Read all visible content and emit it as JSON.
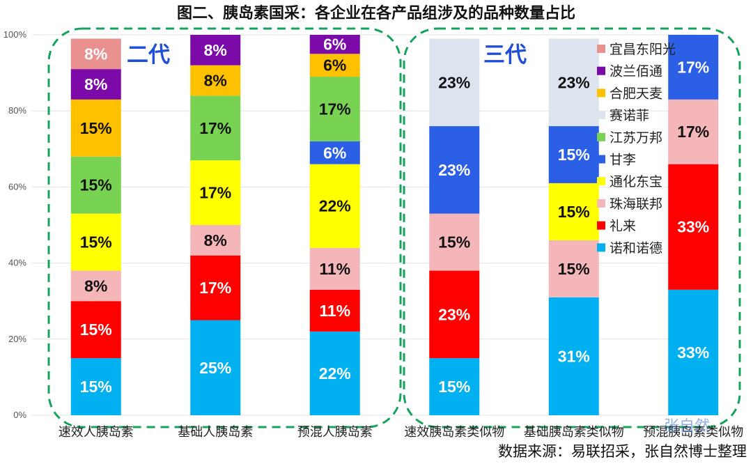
{
  "chart_data": {
    "type": "bar",
    "stacked": true,
    "title": "图二、胰岛素国采：各企业在各产品组涉及的品种数量占比",
    "categories": [
      "速效人胰岛素",
      "基础人胰岛素",
      "预混人胰岛素",
      "速效胰岛素类似物",
      "基础胰岛素类似物",
      "预混胰岛素类似物"
    ],
    "ylim": [
      0,
      100
    ],
    "yticks": [
      "0%",
      "20%",
      "40%",
      "60%",
      "80%",
      "100%"
    ],
    "legend_position": "right",
    "series": [
      {
        "name": "诺和诺德",
        "color": "#00b0f0",
        "values": [
          15,
          25,
          22,
          15,
          31,
          33
        ]
      },
      {
        "name": "礼来",
        "color": "#ff0000",
        "values": [
          15,
          17,
          11,
          23,
          0,
          33
        ]
      },
      {
        "name": "珠海联邦",
        "color": "#f4b6b8",
        "values": [
          8,
          8,
          11,
          15,
          15,
          17
        ]
      },
      {
        "name": "通化东宝",
        "color": "#ffff00",
        "values": [
          15,
          17,
          22,
          0,
          15,
          0
        ]
      },
      {
        "name": "甘李",
        "color": "#2a5fe6",
        "values": [
          0,
          0,
          6,
          23,
          15,
          17
        ]
      },
      {
        "name": "江苏万邦",
        "color": "#78d352",
        "values": [
          15,
          17,
          17,
          0,
          0,
          0
        ]
      },
      {
        "name": "赛诺菲",
        "color": "#dde4f0",
        "values": [
          0,
          0,
          0,
          23,
          23,
          0
        ]
      },
      {
        "name": "合肥天麦",
        "color": "#ffc000",
        "values": [
          15,
          8,
          6,
          0,
          0,
          0
        ]
      },
      {
        "name": "波兰佰通",
        "color": "#7b0aa8",
        "values": [
          8,
          8,
          6,
          0,
          0,
          0
        ]
      },
      {
        "name": "宜昌东阳光",
        "color": "#e8918f",
        "values": [
          8,
          0,
          0,
          0,
          0,
          0
        ]
      }
    ],
    "label_colors": {
      "诺和诺德": "#ffffff",
      "礼来": "#ffffff",
      "珠海联邦": "#111111",
      "通化东宝": "#111111",
      "甘李": "#ffffff",
      "江苏万邦": "#111111",
      "赛诺菲": "#111111",
      "合肥天麦": "#111111",
      "波兰佰通": "#ffffff",
      "宜昌东阳光": "#ffffff"
    },
    "groups": [
      {
        "label": "二代",
        "categories": [
          "速效人胰岛素",
          "基础人胰岛素",
          "预混人胰岛素"
        ]
      },
      {
        "label": "三代",
        "categories": [
          "速效胰岛素类似物",
          "基础胰岛素类似物",
          "预混胰岛素类似物"
        ]
      }
    ]
  },
  "footer": {
    "source": "数据来源：易联招采，张自然博士整理",
    "watermark": "张自然"
  }
}
